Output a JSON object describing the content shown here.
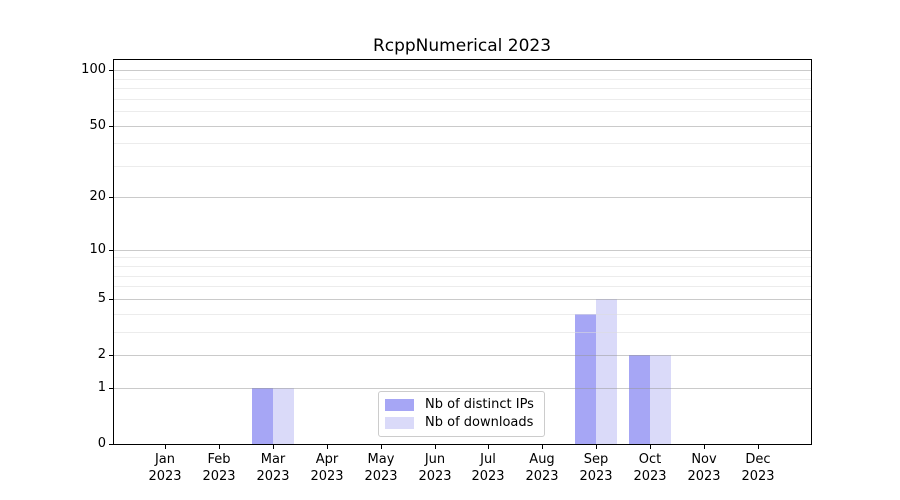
{
  "chart_data": {
    "type": "bar",
    "title": "RcppNumerical 2023",
    "categories": [
      "Jan",
      "Feb",
      "Mar",
      "Apr",
      "May",
      "Jun",
      "Jul",
      "Aug",
      "Sep",
      "Oct",
      "Nov",
      "Dec"
    ],
    "category_year": "2023",
    "series": [
      {
        "name": "Nb of distinct IPs",
        "color": "#a6a6f5",
        "values": [
          0,
          0,
          1,
          0,
          0,
          0,
          0,
          0,
          4,
          2,
          0,
          0
        ]
      },
      {
        "name": "Nb of downloads",
        "color": "#dadaf9",
        "values": [
          0,
          0,
          1,
          0,
          0,
          0,
          0,
          0,
          5,
          2,
          0,
          0
        ]
      }
    ],
    "y_axis": {
      "scale": "log1p",
      "major_ticks": [
        0,
        1,
        2,
        5,
        10,
        20,
        50,
        100
      ],
      "minor_ticks": [
        3,
        4,
        6,
        7,
        8,
        9,
        30,
        40,
        60,
        70,
        80,
        90
      ],
      "range": [
        0,
        115
      ]
    },
    "x_axis": {
      "tick_label_lines": 2
    },
    "legend": {
      "position": "bottom-center",
      "entries": [
        "Nb of distinct IPs",
        "Nb of downloads"
      ]
    },
    "grid": "horizontal",
    "background": "#ffffff"
  }
}
